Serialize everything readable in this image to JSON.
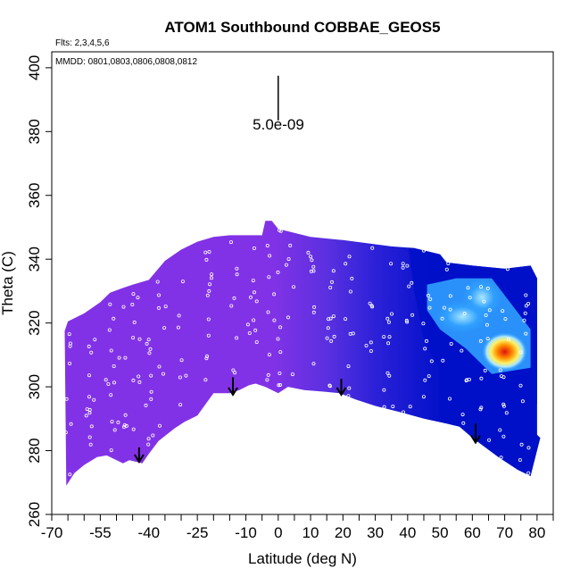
{
  "chart_data": {
    "type": "heatmap",
    "title": "ATOM1 Southbound COBBAE_GEOS5",
    "flights_label": "Flts: 2,3,4,5,6",
    "dates_label": "MMDD: 0801,0803,0806,0808,0812",
    "scale_label": "5.0e-09",
    "xlabel": "Latitude (deg N)",
    "ylabel": "Theta (C)",
    "xlim": [
      -70,
      85
    ],
    "ylim": [
      260,
      405
    ],
    "x_ticks": [
      -70,
      -55,
      -40,
      -25,
      -10,
      0,
      10,
      20,
      30,
      40,
      50,
      60,
      70,
      80
    ],
    "x_tick_labels": [
      "-70",
      "-55",
      "-40",
      "-25",
      "-10",
      "0",
      "10",
      "20",
      "30",
      "40",
      "50",
      "60",
      "70",
      "80"
    ],
    "x_minor_ticks": [
      -65,
      -60,
      -50,
      -45,
      -35,
      -30,
      -20,
      -15,
      -5,
      5,
      15,
      25,
      35,
      45,
      55,
      65,
      75,
      85
    ],
    "y_ticks": [
      260,
      280,
      300,
      320,
      340,
      360,
      380,
      400
    ],
    "y_tick_labels": [
      "260",
      "280",
      "300",
      "320",
      "340",
      "360",
      "380",
      "400"
    ],
    "scale_bar": {
      "x": 0,
      "y_bottom": 383.5,
      "y_top": 397.5
    },
    "surface_outline": [
      [
        -65.5,
        269
      ],
      [
        -63,
        273
      ],
      [
        -60,
        275.5
      ],
      [
        -56,
        278
      ],
      [
        -53,
        278.5
      ],
      [
        -48,
        276
      ],
      [
        -46,
        277
      ],
      [
        -42,
        276
      ],
      [
        -40,
        279
      ],
      [
        -37,
        283
      ],
      [
        -32,
        287
      ],
      [
        -29,
        289
      ],
      [
        -25,
        291
      ],
      [
        -20,
        298
      ],
      [
        -15,
        298
      ],
      [
        -12,
        299
      ],
      [
        -9,
        300.5
      ],
      [
        -7,
        301
      ],
      [
        -4,
        300
      ],
      [
        0,
        298
      ],
      [
        3,
        300
      ],
      [
        8,
        299
      ],
      [
        14,
        298.5
      ],
      [
        19,
        298
      ],
      [
        24,
        296
      ],
      [
        30,
        294
      ],
      [
        38,
        292
      ],
      [
        45,
        290
      ],
      [
        52,
        288.5
      ],
      [
        56,
        287.5
      ],
      [
        60,
        284
      ],
      [
        64,
        281
      ],
      [
        68,
        278
      ],
      [
        74,
        274
      ],
      [
        78,
        272
      ]
    ],
    "top_outline": [
      [
        -66,
        317.5
      ],
      [
        -65,
        320.5
      ],
      [
        -60,
        323
      ],
      [
        -55,
        326.5
      ],
      [
        -52,
        329.5
      ],
      [
        -48,
        331
      ],
      [
        -45,
        332
      ],
      [
        -40,
        333.5
      ],
      [
        -35,
        339.5
      ],
      [
        -30,
        343
      ],
      [
        -25,
        345.5
      ],
      [
        -20,
        347
      ],
      [
        -15,
        347.5
      ],
      [
        -5,
        347.5
      ],
      [
        -4,
        352
      ],
      [
        -2,
        352
      ],
      [
        0,
        349.5
      ],
      [
        10,
        347
      ],
      [
        20,
        346
      ],
      [
        35,
        344
      ],
      [
        42,
        343.5
      ],
      [
        50,
        341.5
      ],
      [
        52,
        339
      ],
      [
        60,
        338
      ],
      [
        70,
        337
      ],
      [
        78,
        338
      ],
      [
        80,
        334
      ],
      [
        80,
        285
      ],
      [
        81,
        284
      ]
    ],
    "arrows": [
      {
        "lat": -43,
        "theta_top": 281,
        "theta_tip": 276.5
      },
      {
        "lat": -14,
        "theta_top": 303,
        "theta_tip": 297.5
      },
      {
        "lat": 19.5,
        "theta_top": 302.5,
        "theta_tip": 297.5
      },
      {
        "lat": 61,
        "theta_top": 288.5,
        "theta_tip": 282.5
      }
    ],
    "colors": {
      "background_field": "#8232e6",
      "mid_blue": "#4040e0",
      "deep_blue": "#0010c8",
      "light_blue": "#30a0ff",
      "cyan": "#a8e6ff",
      "yellow": "#fff060",
      "orange": "#ff9000",
      "red": "#e01010",
      "points": "#ffffff",
      "axes": "#000000"
    }
  }
}
